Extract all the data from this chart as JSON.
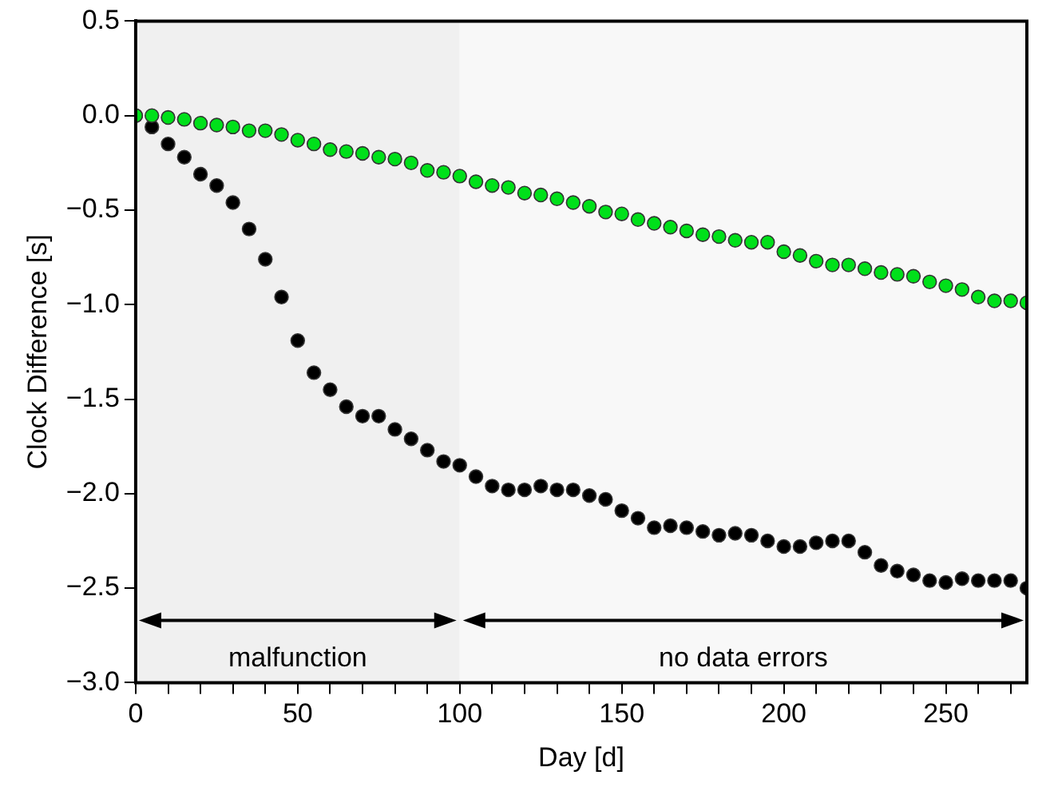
{
  "chart_data": {
    "type": "scatter",
    "xlabel": "Day [d]",
    "ylabel": "Clock Difference [s]",
    "x": [
      0,
      5,
      10,
      15,
      20,
      25,
      30,
      35,
      40,
      45,
      50,
      55,
      60,
      65,
      70,
      75,
      80,
      85,
      90,
      95,
      100,
      105,
      110,
      115,
      120,
      125,
      130,
      135,
      140,
      145,
      150,
      155,
      160,
      165,
      170,
      175,
      180,
      185,
      190,
      195,
      200,
      205,
      210,
      215,
      220,
      225,
      230,
      235,
      240,
      245,
      250,
      255,
      260,
      265,
      270,
      275
    ],
    "series": [
      {
        "color": "#00e01a",
        "values": [
          0,
          0,
          -0.01,
          -0.02,
          -0.04,
          -0.05,
          -0.06,
          -0.08,
          -0.08,
          -0.1,
          -0.13,
          -0.15,
          -0.18,
          -0.19,
          -0.2,
          -0.22,
          -0.23,
          -0.25,
          -0.29,
          -0.3,
          -0.32,
          -0.35,
          -0.37,
          -0.38,
          -0.41,
          -0.42,
          -0.44,
          -0.46,
          -0.48,
          -0.51,
          -0.52,
          -0.55,
          -0.57,
          -0.59,
          -0.61,
          -0.63,
          -0.64,
          -0.66,
          -0.67,
          -0.67,
          -0.72,
          -0.74,
          -0.77,
          -0.79,
          -0.79,
          -0.81,
          -0.83,
          -0.84,
          -0.85,
          -0.88,
          -0.9,
          -0.92,
          -0.96,
          -0.98,
          -0.98,
          -0.99
        ]
      },
      {
        "color": "#000000",
        "values": [
          0,
          -0.06,
          -0.15,
          -0.22,
          -0.31,
          -0.37,
          -0.46,
          -0.6,
          -0.76,
          -0.96,
          -1.19,
          -1.36,
          -1.45,
          -1.54,
          -1.59,
          -1.59,
          -1.66,
          -1.71,
          -1.77,
          -1.83,
          -1.85,
          -1.91,
          -1.96,
          -1.98,
          -1.98,
          -1.96,
          -1.98,
          -1.98,
          -2.01,
          -2.03,
          -2.09,
          -2.13,
          -2.18,
          -2.17,
          -2.18,
          -2.2,
          -2.22,
          -2.21,
          -2.22,
          -2.25,
          -2.28,
          -2.28,
          -2.26,
          -2.25,
          -2.25,
          -2.31,
          -2.38,
          -2.41,
          -2.43,
          -2.46,
          -2.47,
          -2.45,
          -2.46,
          -2.46,
          -2.46,
          -2.5
        ]
      }
    ],
    "xlim": [
      0,
      275
    ],
    "xticks": [
      0,
      {
        "value": 10,
        "label": null
      },
      {
        "value": 20,
        "label": null
      },
      {
        "value": 30,
        "label": null
      },
      {
        "value": 40,
        "label": null
      },
      50,
      {
        "value": 60,
        "label": null
      },
      {
        "value": 70,
        "label": null
      },
      {
        "value": 80,
        "label": null
      },
      {
        "value": 90,
        "label": null
      },
      100,
      {
        "value": 110,
        "label": null
      },
      {
        "value": 120,
        "label": null
      },
      {
        "value": 130,
        "label": null
      },
      {
        "value": 140,
        "label": null
      },
      150,
      {
        "value": 160,
        "label": null
      },
      {
        "value": 170,
        "label": null
      },
      {
        "value": 180,
        "label": null
      },
      {
        "value": 190,
        "label": null
      },
      200,
      {
        "value": 210,
        "label": null
      },
      {
        "value": 220,
        "label": null
      },
      {
        "value": 230,
        "label": null
      },
      {
        "value": 240,
        "label": null
      },
      250,
      {
        "value": 260,
        "label": null
      },
      {
        "value": 270,
        "label": null
      }
    ],
    "ylim": [
      -3,
      0.5
    ],
    "yticks": [
      {
        "value": -3,
        "label": "−3.0"
      },
      {
        "value": -2.5,
        "label": "−2.5"
      },
      {
        "value": -2,
        "label": "−2.0"
      },
      {
        "value": -1.5,
        "label": "−1.5"
      },
      {
        "value": -1,
        "label": "−1.0"
      },
      {
        "value": -0.5,
        "label": "−0.5"
      },
      {
        "value": 0,
        "label": "0.0"
      },
      {
        "value": 0.5,
        "label": "0.5"
      }
    ],
    "bands": [
      {
        "axis": "x",
        "from": 0,
        "to": 100,
        "label": "malfunction",
        "color": "#f0f0f0"
      },
      {
        "axis": "x",
        "from": 100,
        "to": 275,
        "label": "no data errors",
        "color": "#f8f8f8"
      }
    ],
    "marker": "circle",
    "grid": false,
    "legend": false
  }
}
